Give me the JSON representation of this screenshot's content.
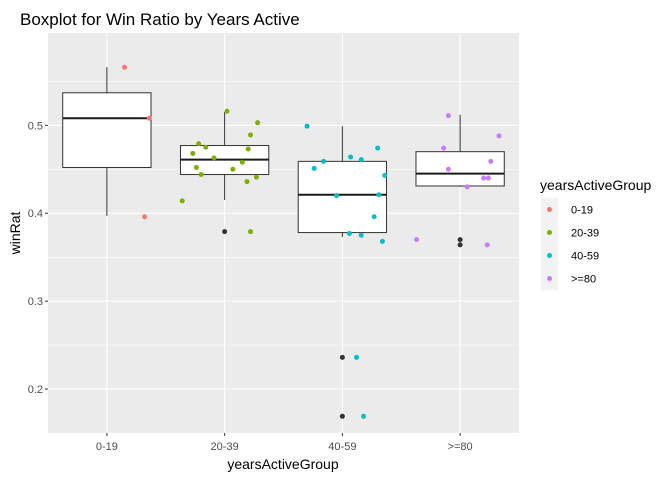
{
  "chart_data": {
    "type": "boxplot",
    "title": "Boxplot for Win Ratio by Years Active",
    "xlabel": "yearsActiveGroup",
    "ylabel": "winRat",
    "categories": [
      "0-19",
      "20-39",
      "40-59",
      ">=80"
    ],
    "ylim": [
      0.15,
      0.605
    ],
    "y_ticks": [
      0.2,
      0.3,
      0.4,
      0.5
    ],
    "y_tick_labels": [
      "0.2",
      "0.3",
      "0.4",
      "0.5"
    ],
    "grid": true,
    "legend": {
      "title": "yearsActiveGroup",
      "position": "right",
      "entries": [
        {
          "label": "0-19",
          "color": "#F8766D"
        },
        {
          "label": "20-39",
          "color": "#7CAE00"
        },
        {
          "label": "40-59",
          "color": "#00BFC4"
        },
        {
          "label": ">=80",
          "color": "#C77CFF"
        }
      ]
    },
    "boxes": [
      {
        "category": "0-19",
        "lower_whisker": 0.397,
        "q1": 0.452,
        "median": 0.508,
        "q3": 0.537,
        "upper_whisker": 0.566,
        "outliers": []
      },
      {
        "category": "20-39",
        "lower_whisker": 0.415,
        "q1": 0.444,
        "median": 0.461,
        "q3": 0.477,
        "upper_whisker": 0.515,
        "outliers": [
          0.379
        ]
      },
      {
        "category": "40-59",
        "lower_whisker": 0.373,
        "q1": 0.378,
        "median": 0.421,
        "q3": 0.459,
        "upper_whisker": 0.499,
        "outliers": [
          0.236,
          0.169
        ]
      },
      {
        "category": ">=80",
        "lower_whisker": 0.43,
        "q1": 0.431,
        "median": 0.445,
        "q3": 0.47,
        "upper_whisker": 0.512,
        "outliers": [
          0.37,
          0.364
        ]
      }
    ],
    "points": [
      {
        "group": "0-19",
        "x": 1.15,
        "y": 0.566
      },
      {
        "group": "0-19",
        "x": 1.36,
        "y": 0.508
      },
      {
        "group": "0-19",
        "x": 1.32,
        "y": 0.396
      },
      {
        "group": "20-39",
        "x": 2.02,
        "y": 0.516
      },
      {
        "group": "20-39",
        "x": 2.28,
        "y": 0.503
      },
      {
        "group": "20-39",
        "x": 2.22,
        "y": 0.489
      },
      {
        "group": "20-39",
        "x": 1.78,
        "y": 0.479
      },
      {
        "group": "20-39",
        "x": 1.84,
        "y": 0.475
      },
      {
        "group": "20-39",
        "x": 2.2,
        "y": 0.473
      },
      {
        "group": "20-39",
        "x": 1.73,
        "y": 0.468
      },
      {
        "group": "20-39",
        "x": 1.91,
        "y": 0.463
      },
      {
        "group": "20-39",
        "x": 2.15,
        "y": 0.458
      },
      {
        "group": "20-39",
        "x": 1.76,
        "y": 0.452
      },
      {
        "group": "20-39",
        "x": 2.07,
        "y": 0.45
      },
      {
        "group": "20-39",
        "x": 1.8,
        "y": 0.444
      },
      {
        "group": "20-39",
        "x": 2.27,
        "y": 0.441
      },
      {
        "group": "20-39",
        "x": 2.19,
        "y": 0.436
      },
      {
        "group": "20-39",
        "x": 1.64,
        "y": 0.414
      },
      {
        "group": "20-39",
        "x": 2.22,
        "y": 0.379
      },
      {
        "group": "40-59",
        "x": 2.7,
        "y": 0.499
      },
      {
        "group": "40-59",
        "x": 3.3,
        "y": 0.474
      },
      {
        "group": "40-59",
        "x": 3.07,
        "y": 0.464
      },
      {
        "group": "40-59",
        "x": 3.16,
        "y": 0.461
      },
      {
        "group": "40-59",
        "x": 2.84,
        "y": 0.459
      },
      {
        "group": "40-59",
        "x": 2.76,
        "y": 0.451
      },
      {
        "group": "40-59",
        "x": 3.36,
        "y": 0.443
      },
      {
        "group": "40-59",
        "x": 3.31,
        "y": 0.421
      },
      {
        "group": "40-59",
        "x": 2.95,
        "y": 0.42
      },
      {
        "group": "40-59",
        "x": 3.27,
        "y": 0.396
      },
      {
        "group": "40-59",
        "x": 3.06,
        "y": 0.377
      },
      {
        "group": "40-59",
        "x": 3.16,
        "y": 0.375
      },
      {
        "group": "40-59",
        "x": 3.34,
        "y": 0.368
      },
      {
        "group": "40-59",
        "x": 3.12,
        "y": 0.236
      },
      {
        "group": "40-59",
        "x": 3.18,
        "y": 0.169
      },
      {
        "group": ">=80",
        "x": 3.9,
        "y": 0.511
      },
      {
        "group": ">=80",
        "x": 4.33,
        "y": 0.488
      },
      {
        "group": ">=80",
        "x": 3.86,
        "y": 0.474
      },
      {
        "group": ">=80",
        "x": 4.26,
        "y": 0.459
      },
      {
        "group": ">=80",
        "x": 3.9,
        "y": 0.45
      },
      {
        "group": ">=80",
        "x": 4.2,
        "y": 0.44
      },
      {
        "group": ">=80",
        "x": 4.24,
        "y": 0.44
      },
      {
        "group": ">=80",
        "x": 4.06,
        "y": 0.43
      },
      {
        "group": ">=80",
        "x": 3.63,
        "y": 0.37
      },
      {
        "group": ">=80",
        "x": 4.23,
        "y": 0.364
      }
    ]
  }
}
